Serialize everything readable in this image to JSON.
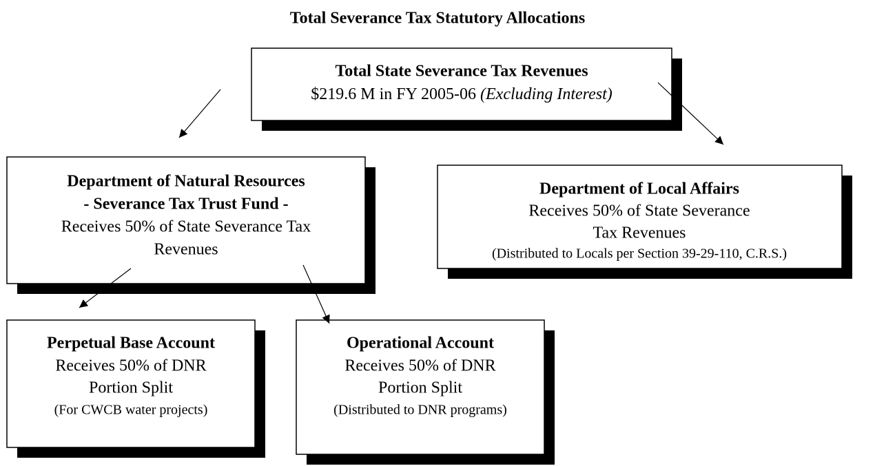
{
  "title": "Total Severance Tax Statutory Allocations",
  "nodes": [
    {
      "lines": [
        "Total State Severance Tax Revenues",
        "$219.6 M in FY 2005-06"
      ],
      "note": "(Excluding Interest)"
    },
    {
      "lines": [
        "Department of Natural Resources",
        "- Severance Tax Trust Fund -",
        "Receives 50% of State Severance Tax",
        "Revenues"
      ]
    },
    {
      "lines": [
        "Department of Local Affairs",
        "Receives 50% of State Severance",
        "Tax Revenues",
        "(Distributed to Locals per Section 39-29-110, C.R.S.)"
      ]
    },
    {
      "lines": [
        "Perpetual Base Account",
        "Receives 50% of DNR",
        "Portion Split",
        "(For CWCB water projects)"
      ]
    },
    {
      "lines": [
        "Operational Account",
        "Receives 50% of DNR",
        "Portion Split",
        "(Distributed to DNR programs)"
      ]
    }
  ]
}
